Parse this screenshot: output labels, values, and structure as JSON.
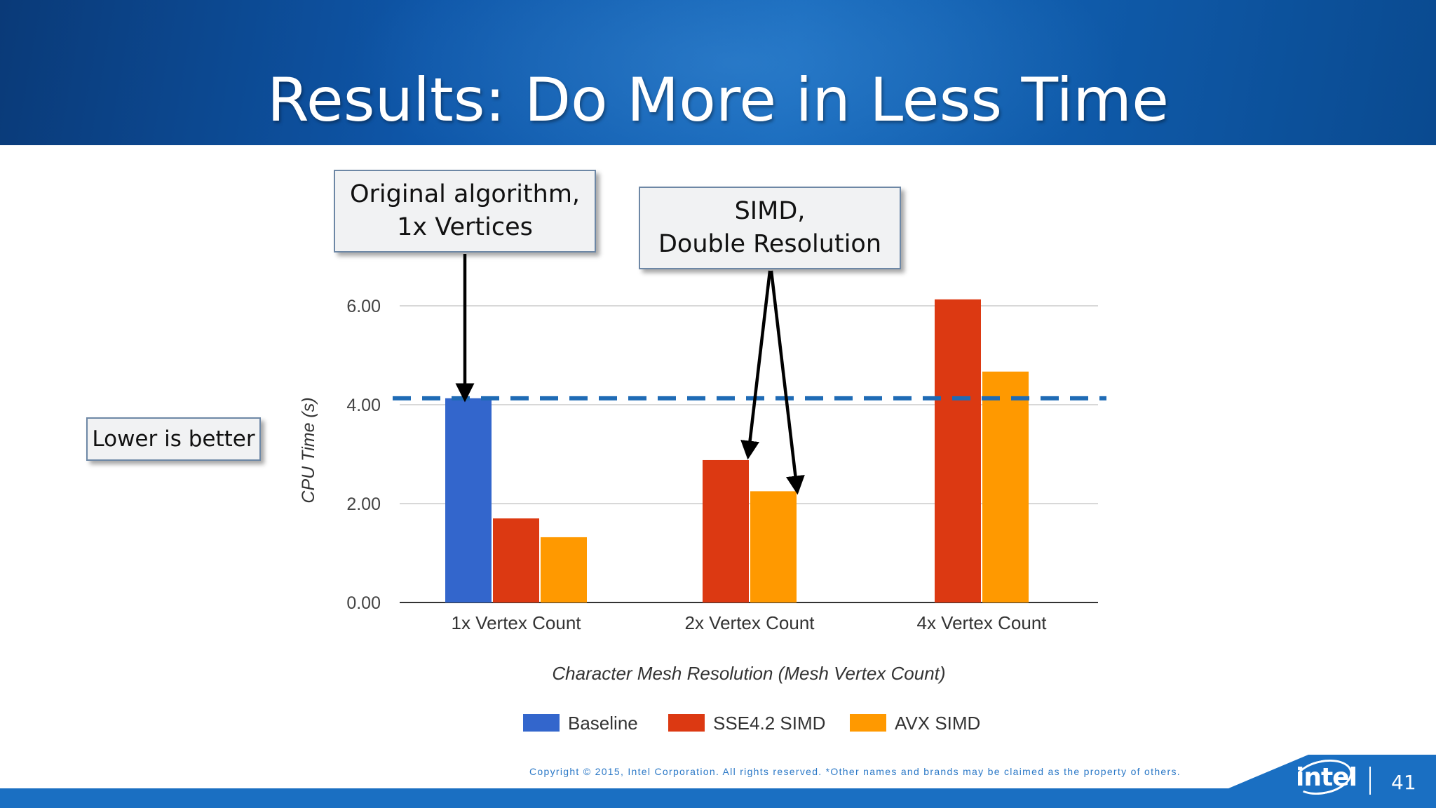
{
  "slide": {
    "title": "Results: Do More in Less Time",
    "callout_original_line1": "Original algorithm,",
    "callout_original_line2": "1x Vertices",
    "callout_simd_line1": "SIMD,",
    "callout_simd_line2": "Double Resolution",
    "callout_lower": "Lower is better",
    "copyright": "Copyright ©  2015, Intel Corporation. All rights reserved. *Other names and brands may be claimed as the property of others.",
    "logo_text": "intel",
    "page_number": "41"
  },
  "chart_data": {
    "type": "bar",
    "categories": [
      "1x Vertex Count",
      "2x Vertex Count",
      "4x Vertex Count"
    ],
    "series": [
      {
        "name": "Baseline",
        "color": "#3366cc",
        "values": [
          4.13,
          null,
          null
        ]
      },
      {
        "name": "SSE4.2 SIMD",
        "color": "#dc3912",
        "values": [
          1.7,
          2.88,
          6.13
        ]
      },
      {
        "name": "AVX SIMD",
        "color": "#ff9900",
        "values": [
          1.32,
          2.25,
          4.67
        ]
      }
    ],
    "reference_line": {
      "value": 4.13,
      "style": "dashed",
      "color": "#1f6bb5"
    },
    "xlabel": "Character Mesh Resolution (Mesh Vertex Count)",
    "ylabel": "CPU Time (s)",
    "yticks": [
      "0.00",
      "2.00",
      "4.00",
      "6.00"
    ],
    "ylim": [
      0,
      6.5
    ],
    "grid": true,
    "legend": "bottom"
  }
}
